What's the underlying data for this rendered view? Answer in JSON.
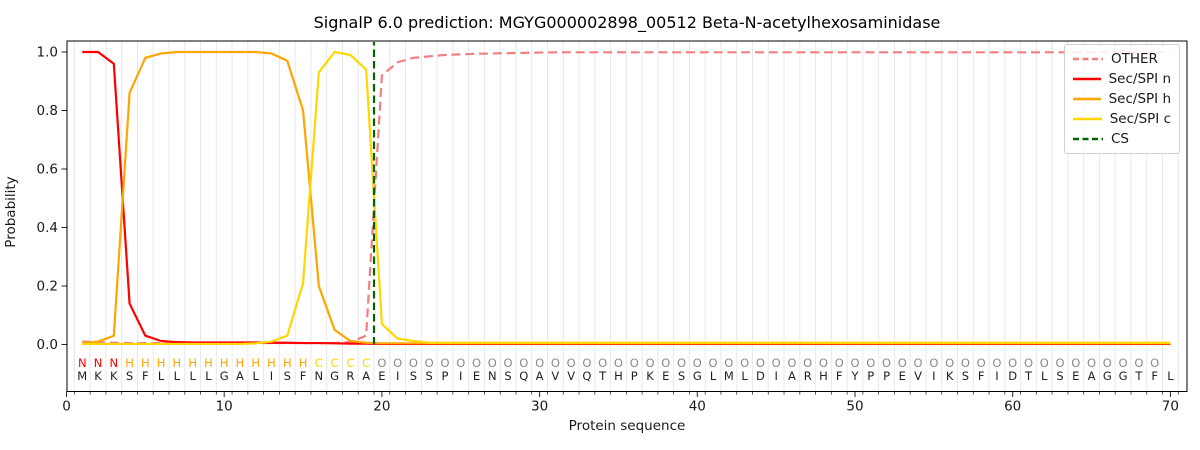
{
  "chart_data": {
    "type": "line",
    "title": "SignalP 6.0 prediction: MGYG000002898_00512 Beta-N-acetylhexosaminidase",
    "xlabel": "Protein sequence",
    "ylabel": "Probability",
    "x_start": 1,
    "x_ticks": [
      0,
      10,
      20,
      30,
      40,
      50,
      60,
      70
    ],
    "y_ticks": [
      "0.0",
      "0.2",
      "0.4",
      "0.6",
      "0.8",
      "1.0"
    ],
    "xlim": [
      0,
      71
    ],
    "ylim": [
      0,
      1.04
    ],
    "grid": "vertical-light",
    "legend_position": "upper right",
    "series": [
      {
        "key": "other",
        "label": "OTHER",
        "color": "#f08080",
        "dashed": true,
        "values": [
          0.01,
          0.008,
          0.006,
          0.005,
          0.005,
          0.005,
          0.005,
          0.005,
          0.005,
          0.005,
          0.005,
          0.005,
          0.005,
          0.005,
          0.005,
          0.005,
          0.005,
          0.008,
          0.03,
          0.92,
          0.965,
          0.98,
          0.985,
          0.99,
          0.992,
          0.994,
          0.995,
          0.996,
          0.997,
          0.998,
          0.999,
          0.999,
          0.999,
          0.999,
          0.999,
          0.999,
          0.999,
          0.999,
          0.999,
          0.999,
          0.999,
          0.999,
          0.999,
          0.999,
          0.999,
          0.999,
          0.999,
          0.999,
          0.999,
          0.999,
          0.999,
          0.999,
          0.999,
          0.999,
          0.999,
          0.999,
          0.999,
          0.999,
          0.999,
          0.999,
          0.999,
          0.999,
          0.999,
          0.999,
          0.999,
          0.999,
          0.999,
          0.999,
          0.999,
          0.999
        ]
      },
      {
        "key": "n",
        "label": "Sec/SPI n",
        "color": "#ff0000",
        "dashed": false,
        "values": [
          1.0,
          1.0,
          0.96,
          0.14,
          0.03,
          0.012,
          0.008,
          0.007,
          0.007,
          0.007,
          0.007,
          0.007,
          0.006,
          0.006,
          0.005,
          0.005,
          0.004,
          0.003,
          0.003,
          0.002,
          0.002,
          0.002,
          0.002,
          0.002,
          0.002,
          0.002,
          0.002,
          0.002,
          0.002,
          0.002,
          0.002,
          0.002,
          0.002,
          0.002,
          0.002,
          0.002,
          0.002,
          0.002,
          0.002,
          0.002,
          0.002,
          0.002,
          0.002,
          0.002,
          0.002,
          0.002,
          0.002,
          0.002,
          0.002,
          0.002,
          0.002,
          0.002,
          0.002,
          0.002,
          0.002,
          0.002,
          0.002,
          0.002,
          0.002,
          0.002,
          0.002,
          0.002,
          0.002,
          0.002,
          0.002,
          0.002,
          0.002,
          0.002,
          0.002,
          0.002
        ]
      },
      {
        "key": "h",
        "label": "Sec/SPI h",
        "color": "#ffa500",
        "dashed": false,
        "values": [
          0.004,
          0.01,
          0.03,
          0.86,
          0.98,
          0.995,
          1.0,
          1.0,
          1.0,
          1.0,
          1.0,
          1.0,
          0.995,
          0.97,
          0.8,
          0.2,
          0.05,
          0.012,
          0.006,
          0.004,
          0.004,
          0.004,
          0.004,
          0.004,
          0.004,
          0.004,
          0.004,
          0.004,
          0.004,
          0.004,
          0.004,
          0.004,
          0.004,
          0.004,
          0.004,
          0.004,
          0.004,
          0.004,
          0.004,
          0.004,
          0.004,
          0.004,
          0.004,
          0.004,
          0.004,
          0.004,
          0.004,
          0.004,
          0.004,
          0.004,
          0.004,
          0.004,
          0.004,
          0.004,
          0.004,
          0.004,
          0.004,
          0.004,
          0.004,
          0.004,
          0.004,
          0.004,
          0.004,
          0.004,
          0.004,
          0.004,
          0.004,
          0.004,
          0.004,
          0.004
        ]
      },
      {
        "key": "c",
        "label": "Sec/SPI c",
        "color": "#ffd700",
        "dashed": false,
        "values": [
          0.002,
          0.002,
          0.002,
          0.002,
          0.002,
          0.002,
          0.002,
          0.002,
          0.002,
          0.002,
          0.002,
          0.004,
          0.01,
          0.03,
          0.21,
          0.93,
          1.0,
          0.99,
          0.94,
          0.07,
          0.02,
          0.012,
          0.006,
          0.006,
          0.006,
          0.006,
          0.006,
          0.006,
          0.006,
          0.006,
          0.006,
          0.006,
          0.006,
          0.006,
          0.006,
          0.006,
          0.006,
          0.006,
          0.006,
          0.006,
          0.006,
          0.006,
          0.006,
          0.006,
          0.006,
          0.006,
          0.006,
          0.006,
          0.006,
          0.006,
          0.006,
          0.006,
          0.006,
          0.006,
          0.006,
          0.006,
          0.006,
          0.006,
          0.006,
          0.006,
          0.006,
          0.006,
          0.006,
          0.006,
          0.006,
          0.006,
          0.006,
          0.006,
          0.006,
          0.006
        ]
      }
    ],
    "cs_line": {
      "key": "cs",
      "label": "CS",
      "color": "#006400",
      "dashed": true,
      "position": 19.5
    },
    "sequence_row": "MKKSFLLLLGALISFNGRAEISSPIENSQAVVQTHPKESGLMLDIARHFYPPEVIKSFIDTLSEAGGTFL",
    "label_row": "NNNHHHHHHHHHHHHCCCCOOOOOOOOOOOOOOOOOOOOOOOOOOOOOOOOOOOOOOOOOOOOOOOOOO",
    "label_colors": {
      "N": "#ff0000",
      "H": "#ffa500",
      "C": "#ffd700",
      "O": "#8a8a8a"
    },
    "sequence_color": "#1f1f1f"
  }
}
